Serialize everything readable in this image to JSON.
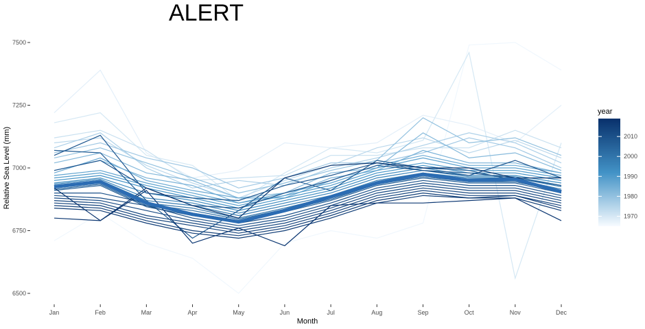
{
  "chart_data": {
    "type": "line",
    "title": "ALERT",
    "xlabel": "Month",
    "ylabel": "Relative Sea Level (mm)",
    "categories": [
      "Jan",
      "Feb",
      "Mar",
      "Apr",
      "May",
      "Jun",
      "Jul",
      "Aug",
      "Sep",
      "Oct",
      "Nov",
      "Dec"
    ],
    "ylim": [
      6470,
      7520
    ],
    "yticks": [
      6500,
      6750,
      7000,
      7250,
      7500
    ],
    "grid": false,
    "legend": {
      "title": "year",
      "position": "right",
      "ticks": [
        1970,
        1980,
        1990,
        2000,
        2010
      ],
      "range": [
        1965,
        2019
      ],
      "low_color": "#f7fbff",
      "high_color": "#08306b"
    },
    "series": [
      {
        "year": 1966,
        "values": [
          6710,
          6820,
          6700,
          6640,
          6500,
          6700,
          6750,
          6720,
          6780,
          7490,
          7500,
          7390
        ]
      },
      {
        "year": 1968,
        "values": [
          7220,
          7390,
          7060,
          6960,
          6990,
          7100,
          7080,
          7100,
          7210,
          7170,
          7100,
          7250
        ]
      },
      {
        "year": 1970,
        "values": [
          7180,
          7220,
          7050,
          7010,
          6870,
          6980,
          7080,
          7060,
          7110,
          7460,
          6560,
          7100
        ]
      },
      {
        "year": 1972,
        "values": [
          7120,
          7150,
          7070,
          6950,
          6960,
          6970,
          7050,
          7050,
          7080,
          7080,
          7150,
          7080
        ]
      },
      {
        "year": 1974,
        "values": [
          7100,
          7120,
          7010,
          6940,
          6880,
          6950,
          7010,
          7080,
          7120,
          7060,
          7110,
          7040
        ]
      },
      {
        "year": 1976,
        "values": [
          7080,
          7140,
          7000,
          6920,
          6950,
          6930,
          7000,
          7040,
          7090,
          7140,
          7100,
          7020
        ]
      },
      {
        "year": 1978,
        "values": [
          7060,
          7100,
          7040,
          7000,
          6920,
          6960,
          7020,
          7020,
          7060,
          7120,
          7080,
          7000
        ]
      },
      {
        "year": 1980,
        "values": [
          7040,
          7080,
          7020,
          6960,
          6900,
          6940,
          6990,
          7030,
          7200,
          7100,
          7120,
          7050
        ]
      },
      {
        "year": 1982,
        "values": [
          7020,
          7060,
          6980,
          6950,
          6880,
          6900,
          6980,
          7000,
          7140,
          7040,
          7060,
          6990
        ]
      },
      {
        "year": 1984,
        "values": [
          6990,
          7030,
          6960,
          6930,
          6860,
          6890,
          6960,
          6990,
          7070,
          7020,
          7020,
          6980
        ]
      },
      {
        "year": 1986,
        "values": [
          6980,
          7040,
          6950,
          6910,
          6880,
          6880,
          6950,
          7010,
          7050,
          7010,
          7010,
          6980
        ]
      },
      {
        "year": 1988,
        "values": [
          6970,
          6990,
          6940,
          6900,
          6860,
          6900,
          6940,
          7000,
          7040,
          7000,
          7000,
          6970
        ]
      },
      {
        "year": 1990,
        "values": [
          6960,
          6980,
          6930,
          6890,
          6850,
          6890,
          6930,
          6990,
          7020,
          6990,
          6990,
          6960
        ]
      },
      {
        "year": 1992,
        "values": [
          6950,
          6970,
          6920,
          6880,
          6840,
          6880,
          6920,
          6980,
          7010,
          6980,
          6980,
          6950
        ]
      },
      {
        "year": 1994,
        "values": [
          6940,
          6960,
          6900,
          6870,
          6830,
          6870,
          6910,
          6970,
          7000,
          6970,
          6970,
          6940
        ]
      },
      {
        "year": 1996,
        "values": [
          6935,
          6955,
          6880,
          6860,
          6820,
          6860,
          6900,
          6960,
          6990,
          6965,
          6965,
          6930
        ]
      },
      {
        "year": 1998,
        "values": [
          6930,
          6950,
          6870,
          6850,
          6810,
          6850,
          6890,
          6950,
          6980,
          6960,
          6960,
          6925
        ]
      },
      {
        "year": 2000,
        "values": [
          6925,
          6945,
          6860,
          6840,
          6800,
          6840,
          6885,
          6945,
          6975,
          6955,
          6955,
          6915
        ]
      },
      {
        "year": 2002,
        "values": [
          6920,
          6940,
          6855,
          6830,
          6795,
          6835,
          6880,
          6940,
          6970,
          6950,
          6950,
          6910
        ]
      },
      {
        "year": 2004,
        "values": [
          6915,
          6935,
          6850,
          6820,
          6790,
          6830,
          6875,
          6935,
          6965,
          6945,
          6945,
          6905
        ]
      },
      {
        "year": 2006,
        "values": [
          6910,
          6930,
          6845,
          6810,
          6785,
          6825,
          6870,
          6930,
          6960,
          6940,
          6940,
          6900
        ]
      },
      {
        "year": 2007,
        "values": [
          7070,
          7060,
          6870,
          6720,
          6830,
          6960,
          6910,
          7030,
          7000,
          6990,
          6950,
          6900
        ]
      },
      {
        "year": 2008,
        "values": [
          7050,
          7130,
          6900,
          6880,
          6870,
          6930,
          6970,
          7020,
          6990,
          6980,
          6960,
          6930
        ]
      },
      {
        "year": 2009,
        "values": [
          6990,
          7030,
          6920,
          6850,
          6840,
          6900,
          6950,
          7010,
          6990,
          6970,
          7030,
          6960
        ]
      },
      {
        "year": 2010,
        "values": [
          6900,
          6900,
          6860,
          6820,
          6780,
          6810,
          6860,
          6920,
          6950,
          6930,
          6930,
          6890
        ]
      },
      {
        "year": 2011,
        "values": [
          6890,
          6880,
          6850,
          6800,
          6770,
          6800,
          6850,
          6910,
          6940,
          6920,
          6920,
          6880
        ]
      },
      {
        "year": 2012,
        "values": [
          6880,
          6870,
          6830,
          6790,
          6760,
          6790,
          6840,
          6900,
          6930,
          6910,
          6910,
          6870
        ]
      },
      {
        "year": 2013,
        "values": [
          6870,
          6860,
          6810,
          6780,
          6750,
          6780,
          6830,
          6890,
          6920,
          6900,
          6900,
          6860
        ]
      },
      {
        "year": 2014,
        "values": [
          6860,
          6850,
          6800,
          6770,
          6740,
          6770,
          6820,
          6880,
          6910,
          6890,
          6890,
          6850
        ]
      },
      {
        "year": 2015,
        "values": [
          6850,
          6840,
          6790,
          6750,
          6730,
          6760,
          6810,
          6870,
          6900,
          6880,
          6890,
          6840
        ]
      },
      {
        "year": 2016,
        "values": [
          6840,
          6830,
          6780,
          6740,
          6720,
          6750,
          6800,
          6860,
          6890,
          6880,
          6880,
          6830
        ]
      },
      {
        "year": 2017,
        "values": [
          6800,
          6790,
          6910,
          6700,
          6760,
          6690,
          6850,
          6860,
          6860,
          6870,
          6880,
          6790
        ]
      },
      {
        "year": 2018,
        "values": [
          6920,
          6790,
          6920,
          6850,
          6800,
          6960,
          7010,
          7020,
          7000,
          7000,
          6960,
          6960
        ]
      }
    ],
    "mean_line": {
      "values": [
        6925,
        6945,
        6860,
        6815,
        6785,
        6830,
        6885,
        6940,
        6975,
        6950,
        6955,
        6905
      ]
    }
  }
}
